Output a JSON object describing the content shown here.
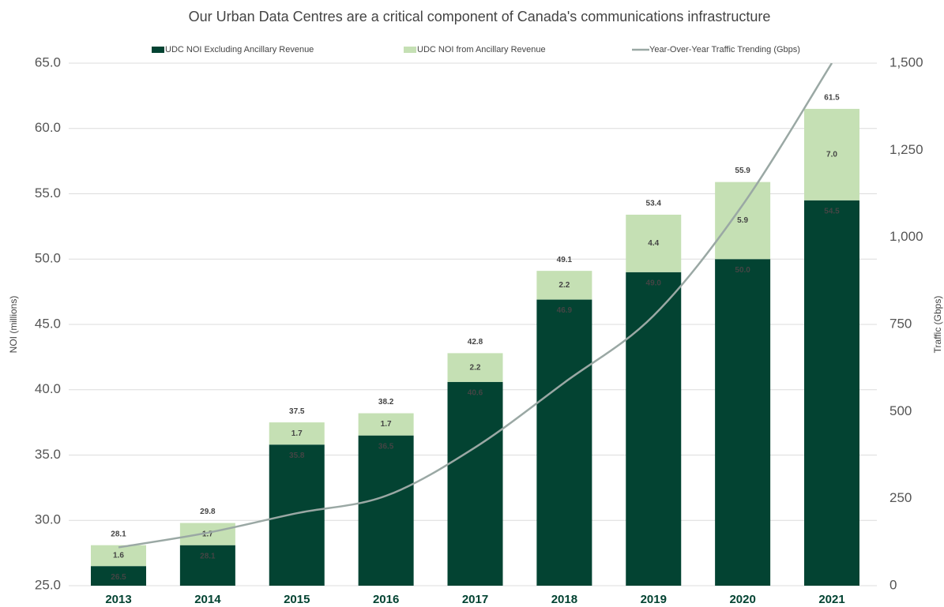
{
  "chart_data": {
    "type": "bar",
    "title": "Our Urban Data Centres are a critical component of Canada's  communications infrastructure",
    "y_label": "NOI (millions)",
    "y2_label": "Traffic (Gbps)",
    "categories": [
      "2013",
      "2014",
      "2015",
      "2016",
      "2017",
      "2018",
      "2019",
      "2020",
      "2021"
    ],
    "stacked": true,
    "series": [
      {
        "name": "UDC NOI Excluding Ancillary Revenue",
        "color": "#034332",
        "values": [
          26.5,
          28.1,
          35.8,
          36.5,
          40.6,
          46.9,
          49.0,
          50.0,
          54.5
        ],
        "value_labels": [
          "26.5",
          "28.1",
          "35.8",
          "36.5",
          "40.6",
          "46.9",
          "49.0",
          "50.0",
          "54.5"
        ]
      },
      {
        "name": "UDC NOI from Ancillary Revenue",
        "color": "#c5e0b4",
        "values": [
          1.6,
          1.7,
          1.7,
          1.7,
          2.2,
          2.2,
          4.4,
          5.9,
          7.0
        ],
        "value_labels": [
          "1.6",
          "1.7",
          "1.7",
          "1.7",
          "2.2",
          "2.2",
          "4.4",
          "5.9",
          "7.0"
        ]
      },
      {
        "name": "Year-Over-Year Traffic Trending (Gbps)",
        "color": "#9aa8a4",
        "type": "line",
        "axis": "y2",
        "values": [
          110,
          152,
          208,
          258,
          397,
          583,
          775,
          1093,
          1500
        ]
      }
    ],
    "totals": [
      28.1,
      29.8,
      37.5,
      38.2,
      42.8,
      49.1,
      53.4,
      55.9,
      61.5
    ],
    "ylim": [
      25,
      65
    ],
    "yticks": [
      {
        "value": 25,
        "label": "25.0"
      },
      {
        "value": 30,
        "label": "30.0"
      },
      {
        "value": 35,
        "label": "35.0"
      },
      {
        "value": 40,
        "label": "40.0"
      },
      {
        "value": 45,
        "label": "45.0"
      },
      {
        "value": 50,
        "label": "50.0"
      },
      {
        "value": 55,
        "label": "55.0"
      },
      {
        "value": 60,
        "label": "60.0"
      },
      {
        "value": 65,
        "label": "65.0"
      }
    ],
    "y2lim": [
      0,
      1500
    ],
    "y2ticks": [
      0,
      250,
      500,
      750,
      {
        "value": 1000,
        "label": "1,000"
      },
      {
        "value": 1250,
        "label": "1,250"
      },
      {
        "value": 1500,
        "label": "1,500"
      }
    ],
    "grid": true,
    "legend": "top"
  }
}
